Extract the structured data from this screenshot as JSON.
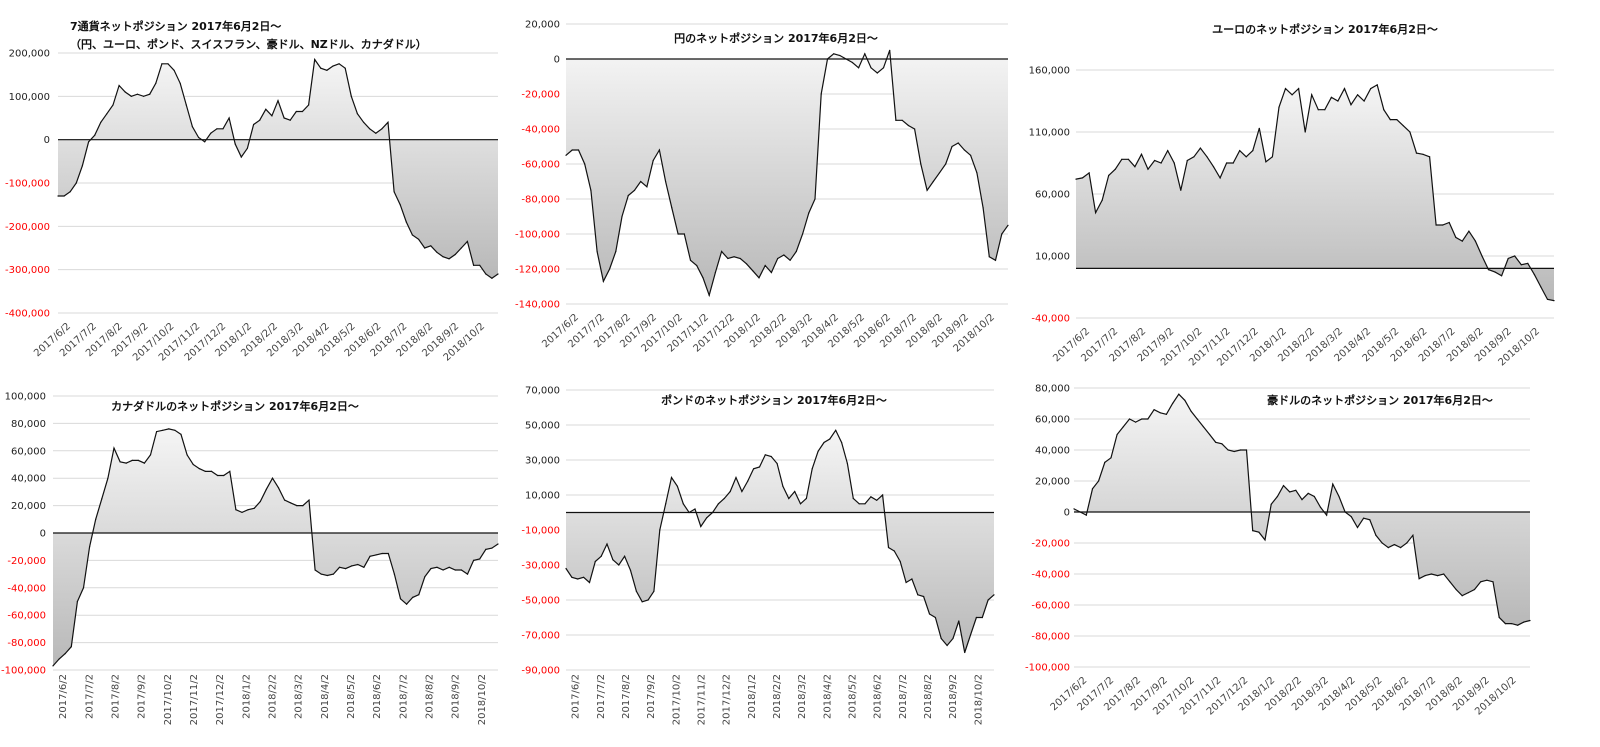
{
  "colors": {
    "line": "#111111",
    "grid": "#d9d9d9",
    "zero": "#111111",
    "neg_label": "#ff0000",
    "pos_label": "#222222",
    "fill_top": "#f5f5f5",
    "fill_bottom": "#b8b8b8"
  },
  "chart_data": [
    {
      "type": "area",
      "title": "7通貨ネットポジション 2017年6月2日～",
      "subtitle": "（円、ユーロ、ポンド、スイスフラン、豪ドル、NZドル、カナダドル）",
      "ylim": [
        -400000,
        200000
      ],
      "yticks": [
        200000,
        100000,
        0,
        -100000,
        -200000,
        -300000,
        -400000
      ],
      "ytick_labels": [
        "200,000",
        "100,000",
        "0",
        "-100,000",
        "-200,000",
        "-300,000",
        "-400,000"
      ],
      "x_labels": [
        "2017/6/2",
        "2017/7/2",
        "2017/8/2",
        "2017/9/2",
        "2017/10/2",
        "2017/11/2",
        "2017/12/2",
        "2018/1/2",
        "2018/2/2",
        "2018/3/2",
        "2018/4/2",
        "2018/5/2",
        "2018/6/2",
        "2018/7/2",
        "2018/8/2",
        "2018/9/2",
        "2018/10/2"
      ],
      "grid": true,
      "values": [
        -130000,
        -130000,
        -120000,
        -100000,
        -60000,
        -5000,
        10000,
        40000,
        60000,
        80000,
        125000,
        110000,
        100000,
        105000,
        100000,
        105000,
        130000,
        175000,
        175000,
        160000,
        130000,
        80000,
        30000,
        5000,
        -5000,
        15000,
        25000,
        25000,
        50000,
        -10000,
        -40000,
        -20000,
        35000,
        45000,
        70000,
        55000,
        90000,
        50000,
        45000,
        65000,
        65000,
        80000,
        185000,
        165000,
        160000,
        170000,
        175000,
        165000,
        100000,
        60000,
        40000,
        25000,
        15000,
        25000,
        40000,
        -120000,
        -150000,
        -190000,
        -220000,
        -230000,
        -250000,
        -245000,
        -260000,
        -270000,
        -275000,
        -265000,
        -250000,
        -235000,
        -290000,
        -290000,
        -310000,
        -320000,
        -310000
      ]
    },
    {
      "type": "area",
      "title": "円のネットポジション 2017年6月2日～",
      "ylim": [
        -140000,
        20000
      ],
      "yticks": [
        20000,
        0,
        -20000,
        -40000,
        -60000,
        -80000,
        -100000,
        -120000,
        -140000
      ],
      "ytick_labels": [
        "20,000",
        "0",
        "-20,000",
        "-40,000",
        "-60,000",
        "-80,000",
        "-100,000",
        "-120,000",
        "-140,000"
      ],
      "x_labels": [
        "2017/6/2",
        "2017/7/2",
        "2017/8/2",
        "2017/9/2",
        "2017/10/2",
        "2017/11/2",
        "2017/12/2",
        "2018/1/2",
        "2018/2/2",
        "2018/3/2",
        "2018/4/2",
        "2018/5/2",
        "2018/6/2",
        "2018/7/2",
        "2018/8/2",
        "2018/9/2",
        "2018/10/2"
      ],
      "grid": true,
      "values": [
        -55000,
        -52000,
        -52000,
        -60000,
        -75000,
        -110000,
        -127000,
        -120000,
        -110000,
        -90000,
        -78000,
        -75000,
        -70000,
        -73000,
        -58000,
        -52000,
        -70000,
        -85000,
        -100000,
        -100000,
        -115000,
        -118000,
        -125000,
        -135000,
        -122000,
        -110000,
        -114000,
        -113000,
        -114000,
        -117000,
        -121000,
        -125000,
        -118000,
        -122000,
        -114000,
        -112000,
        -115000,
        -110000,
        -100000,
        -88000,
        -80000,
        -20000,
        0,
        3000,
        2000,
        0,
        -2000,
        -5000,
        3000,
        -5000,
        -8000,
        -5000,
        5000,
        -35000,
        -35000,
        -38000,
        -40000,
        -60000,
        -75000,
        -70000,
        -65000,
        -60000,
        -50000,
        -48000,
        -52000,
        -55000,
        -65000,
        -85000,
        -113000,
        -115000,
        -100000,
        -95000
      ]
    },
    {
      "type": "area",
      "title": "ユーロのネットポジション 2017年6月2日～",
      "ylim": [
        -40000,
        160000
      ],
      "yticks": [
        160000,
        110000,
        60000,
        10000,
        -40000
      ],
      "ytick_labels": [
        "160,000",
        "110,000",
        "60,000",
        "10,000",
        "-40,000"
      ],
      "x_labels": [
        "2017/6/2",
        "2017/7/2",
        "2017/8/2",
        "2017/9/2",
        "2017/10/2",
        "2017/11/2",
        "2017/12/2",
        "2018/1/2",
        "2018/2/2",
        "2018/3/2",
        "2018/4/2",
        "2018/5/2",
        "2018/6/2",
        "2018/7/2",
        "2018/8/2",
        "2018/9/2",
        "2018/10/2"
      ],
      "grid": true,
      "values": [
        72000,
        73000,
        77000,
        45000,
        55000,
        75000,
        80000,
        88000,
        88000,
        82000,
        92000,
        80000,
        87000,
        85000,
        95000,
        85000,
        63000,
        87000,
        90000,
        97000,
        90000,
        82000,
        73000,
        85000,
        85000,
        95000,
        90000,
        95000,
        113000,
        86000,
        90000,
        130000,
        145000,
        140000,
        145000,
        110000,
        140000,
        128000,
        128000,
        138000,
        135000,
        145000,
        132000,
        140000,
        135000,
        145000,
        148000,
        128000,
        120000,
        120000,
        115000,
        110000,
        93000,
        92000,
        90000,
        35000,
        35000,
        37000,
        25000,
        22000,
        30000,
        22000,
        10000,
        -1000,
        -3000,
        -6000,
        8000,
        10000,
        3000,
        4000,
        -5000,
        -15000,
        -25000,
        -26000
      ]
    },
    {
      "type": "area",
      "title": "カナダドルのネットポジション 2017年6月2日～",
      "ylim": [
        -100000,
        100000
      ],
      "yticks": [
        100000,
        80000,
        60000,
        40000,
        20000,
        0,
        -20000,
        -40000,
        -60000,
        -80000,
        -100000
      ],
      "ytick_labels": [
        "100,000",
        "80,000",
        "60,000",
        "40,000",
        "20,000",
        "0",
        "-20,000",
        "-40,000",
        "-60,000",
        "-80,000",
        "-100,000"
      ],
      "x_labels": [
        "2017/6/2",
        "2017/7/2",
        "2017/8/2",
        "2017/9/2",
        "2017/10/2",
        "2017/11/2",
        "2017/12/2",
        "2018/1/2",
        "2018/2/2",
        "2018/3/2",
        "2018/4/2",
        "2018/5/2",
        "2018/6/2",
        "2018/7/2",
        "2018/8/2",
        "2018/9/2",
        "2018/10/2"
      ],
      "grid": true,
      "values": [
        -97000,
        -92000,
        -88000,
        -83000,
        -50000,
        -40000,
        -10000,
        10000,
        25000,
        40000,
        62000,
        52000,
        51000,
        53000,
        53000,
        51000,
        57000,
        74000,
        75000,
        76000,
        75000,
        72000,
        57000,
        50000,
        47000,
        45000,
        45000,
        42000,
        42000,
        45000,
        17000,
        15000,
        17000,
        18000,
        23000,
        32000,
        40000,
        33000,
        24000,
        22000,
        20000,
        20000,
        24000,
        -27000,
        -30000,
        -31000,
        -30000,
        -25000,
        -26000,
        -24000,
        -23000,
        -25000,
        -17000,
        -16000,
        -15000,
        -15000,
        -30000,
        -48000,
        -52000,
        -47000,
        -45000,
        -32000,
        -26000,
        -25000,
        -27000,
        -25000,
        -27000,
        -27000,
        -30000,
        -20000,
        -19000,
        -12000,
        -11000,
        -8000
      ]
    },
    {
      "type": "area",
      "title": "ポンドのネットポジション 2017年6月2日～",
      "ylim": [
        -90000,
        70000
      ],
      "yticks": [
        70000,
        50000,
        30000,
        10000,
        -10000,
        -30000,
        -50000,
        -70000,
        -90000
      ],
      "ytick_labels": [
        "70,000",
        "50,000",
        "30,000",
        "10,000",
        "-10,000",
        "-30,000",
        "-50,000",
        "-70,000",
        "-90,000"
      ],
      "x_labels": [
        "2017/6/2",
        "2017/7/2",
        "2017/8/2",
        "2017/9/2",
        "2017/10/2",
        "2017/11/2",
        "2017/12/2",
        "2018/1/2",
        "2018/2/2",
        "2018/3/2",
        "2018/4/2",
        "2018/5/2",
        "2018/6/2",
        "2018/7/2",
        "2018/8/2",
        "2018/9/2",
        "2018/10/2"
      ],
      "grid": true,
      "values": [
        -32000,
        -37000,
        -38000,
        -37000,
        -40000,
        -28000,
        -25000,
        -18000,
        -27000,
        -30000,
        -25000,
        -33000,
        -45000,
        -51000,
        -50000,
        -45000,
        -10000,
        5000,
        20000,
        15000,
        5000,
        0,
        2000,
        -8000,
        -3000,
        0,
        5000,
        8000,
        12000,
        20000,
        12000,
        18000,
        25000,
        26000,
        33000,
        32000,
        28000,
        15000,
        8000,
        12000,
        5000,
        8000,
        25000,
        35000,
        40000,
        42000,
        47000,
        40000,
        28000,
        8000,
        5000,
        5000,
        9000,
        7000,
        10000,
        -20000,
        -22000,
        -28000,
        -40000,
        -38000,
        -47000,
        -48000,
        -58000,
        -60000,
        -72000,
        -76000,
        -72000,
        -62000,
        -80000,
        -70000,
        -60000,
        -60000,
        -50000,
        -47000
      ]
    },
    {
      "type": "area",
      "title": "豪ドルのネットポジション 2017年6月2日～",
      "ylim": [
        -100000,
        80000
      ],
      "yticks": [
        80000,
        60000,
        40000,
        20000,
        0,
        -20000,
        -40000,
        -60000,
        -80000,
        -100000
      ],
      "ytick_labels": [
        "80,000",
        "60,000",
        "40,000",
        "20,000",
        "0",
        "-20,000",
        "-40,000",
        "-60,000",
        "-80,000",
        "-100,000"
      ],
      "x_labels": [
        "2017/6/2",
        "2017/7/2",
        "2017/8/2",
        "2017/9/2",
        "2017/10/2",
        "2017/11/2",
        "2017/12/2",
        "2018/1/2",
        "2018/2/2",
        "2018/3/2",
        "2018/4/2",
        "2018/5/2",
        "2018/6/2",
        "2018/7/2",
        "2018/8/2",
        "2018/9/2",
        "2018/10/2"
      ],
      "grid": true,
      "values": [
        2000,
        0,
        -2000,
        15000,
        20000,
        32000,
        35000,
        50000,
        55000,
        60000,
        58000,
        60000,
        60000,
        66000,
        64000,
        63000,
        70000,
        76000,
        72000,
        65000,
        60000,
        55000,
        50000,
        45000,
        44000,
        40000,
        39000,
        40000,
        40000,
        -12000,
        -13000,
        -18000,
        5000,
        10000,
        17000,
        13000,
        14000,
        8000,
        12000,
        10000,
        3000,
        -2000,
        18000,
        10000,
        0,
        -3000,
        -10000,
        -4000,
        -5000,
        -15000,
        -20000,
        -23000,
        -21000,
        -23000,
        -20000,
        -15000,
        -43000,
        -41000,
        -40000,
        -41000,
        -40000,
        -45000,
        -50000,
        -54000,
        -52000,
        -50000,
        -45000,
        -44000,
        -45000,
        -68000,
        -72000,
        -72000,
        -73000,
        -71000,
        -70000
      ]
    }
  ]
}
